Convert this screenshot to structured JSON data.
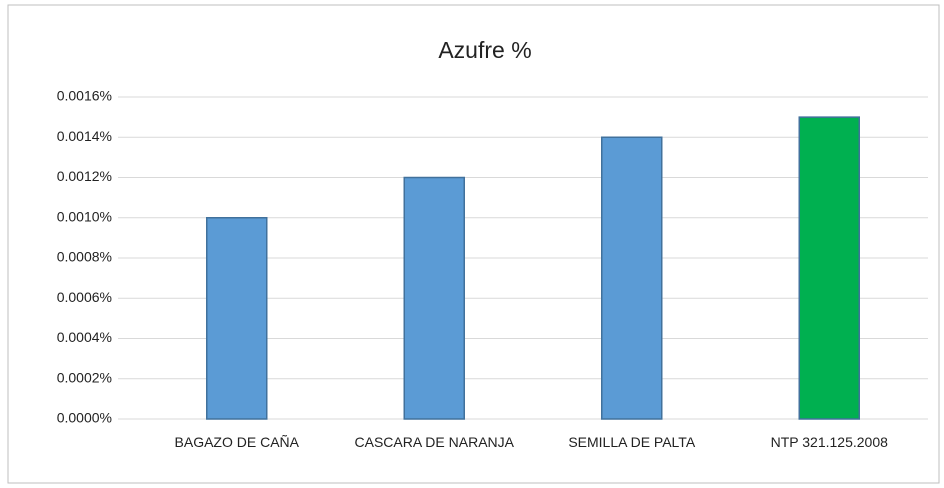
{
  "chart_data": {
    "type": "bar",
    "title": "Azufre %",
    "categories": [
      "BAGAZO DE CAÑA",
      "CASCARA DE NARANJA",
      "SEMILLA DE PALTA",
      "NTP 321.125.2008"
    ],
    "values": [
      0.001,
      0.0012,
      0.0014,
      0.0015
    ],
    "colors": [
      "#5b9bd5",
      "#5b9bd5",
      "#5b9bd5",
      "#00b050"
    ],
    "ylim": [
      0,
      0.0016
    ],
    "yticks": [
      {
        "value": 0,
        "label": "0.0000%"
      },
      {
        "value": 0.0002,
        "label": "0.0002%"
      },
      {
        "value": 0.0004,
        "label": "0.0004%"
      },
      {
        "value": 0.0006,
        "label": "0.0006%"
      },
      {
        "value": 0.0008,
        "label": "0.0008%"
      },
      {
        "value": 0.001,
        "label": "0.0010%"
      },
      {
        "value": 0.0012,
        "label": "0.0012%"
      },
      {
        "value": 0.0014,
        "label": "0.0014%"
      },
      {
        "value": 0.0016,
        "label": "0.0016%"
      }
    ],
    "grid": true
  }
}
